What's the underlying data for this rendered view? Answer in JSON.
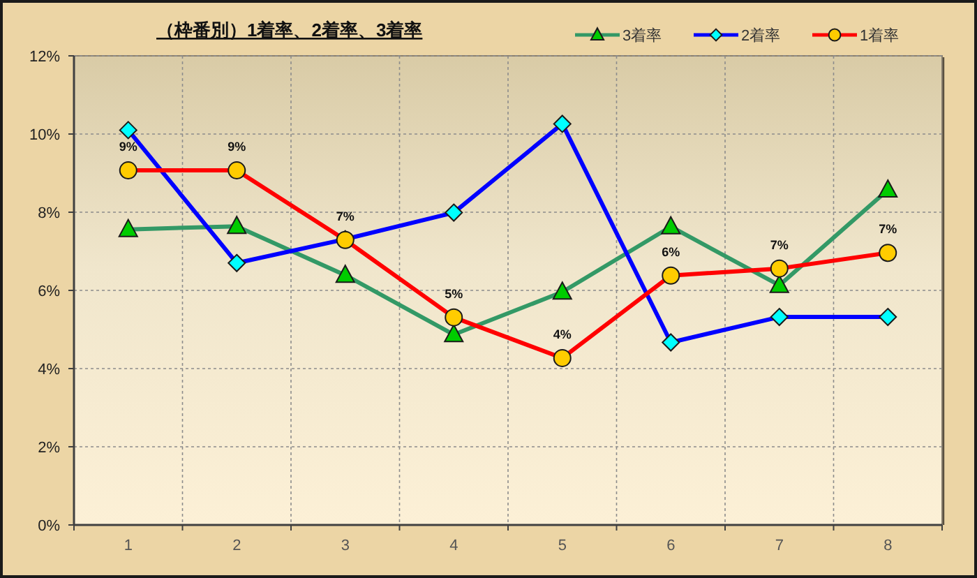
{
  "chart_data": {
    "type": "line",
    "title": "（枠番別）1着率、2着率、3着率",
    "categories": [
      "1",
      "2",
      "3",
      "4",
      "5",
      "6",
      "7",
      "8"
    ],
    "series": [
      {
        "name": "3着率",
        "color": "#339966",
        "colors": [
          "#00cc00",
          "#00cc00",
          "#00cc00",
          "#00cc00",
          "#00cc00",
          "#00cc00",
          "#00cc00",
          "#00cc00"
        ],
        "marker": "triangle",
        "values": [
          7.56,
          7.64,
          6.39,
          4.87,
          5.96,
          7.63,
          6.13,
          8.57
        ]
      },
      {
        "name": "2着率",
        "color": "#0000ff",
        "colors": [
          "#00ffff",
          "#00ffff",
          "#00ffff",
          "#00ffff",
          "#00ffff",
          "#00ffff",
          "#00ffff",
          "#00ffff"
        ],
        "marker": "diamond",
        "values": [
          10.1,
          6.7,
          7.31,
          7.99,
          10.26,
          4.67,
          5.32,
          5.32
        ]
      },
      {
        "name": "1着率",
        "color": "#ff0000",
        "colors": [
          "#ffcc00",
          "#ffcc00",
          "#ffcc00",
          "#ffcc00",
          "#ffcc00",
          "#ffcc00",
          "#ffcc00",
          "#ffcc00"
        ],
        "marker": "circle",
        "values": [
          9.07,
          9.07,
          7.29,
          5.31,
          4.27,
          6.38,
          6.56,
          6.96
        ],
        "value_labels": [
          "9%",
          "9%",
          "7%",
          "5%",
          "4%",
          "6%",
          "7%",
          "7%"
        ]
      }
    ],
    "ylim": [
      0,
      12
    ],
    "yticks": [
      {
        "value": 0,
        "label": "0%"
      },
      {
        "value": 2,
        "label": "2%"
      },
      {
        "value": 4,
        "label": "4%"
      },
      {
        "value": 6,
        "label": "6%"
      },
      {
        "value": 8,
        "label": "8%"
      },
      {
        "value": 10,
        "label": "10%"
      },
      {
        "value": 12,
        "label": "12%"
      }
    ],
    "grid": true,
    "legend": "top right",
    "line_style": "solid"
  }
}
